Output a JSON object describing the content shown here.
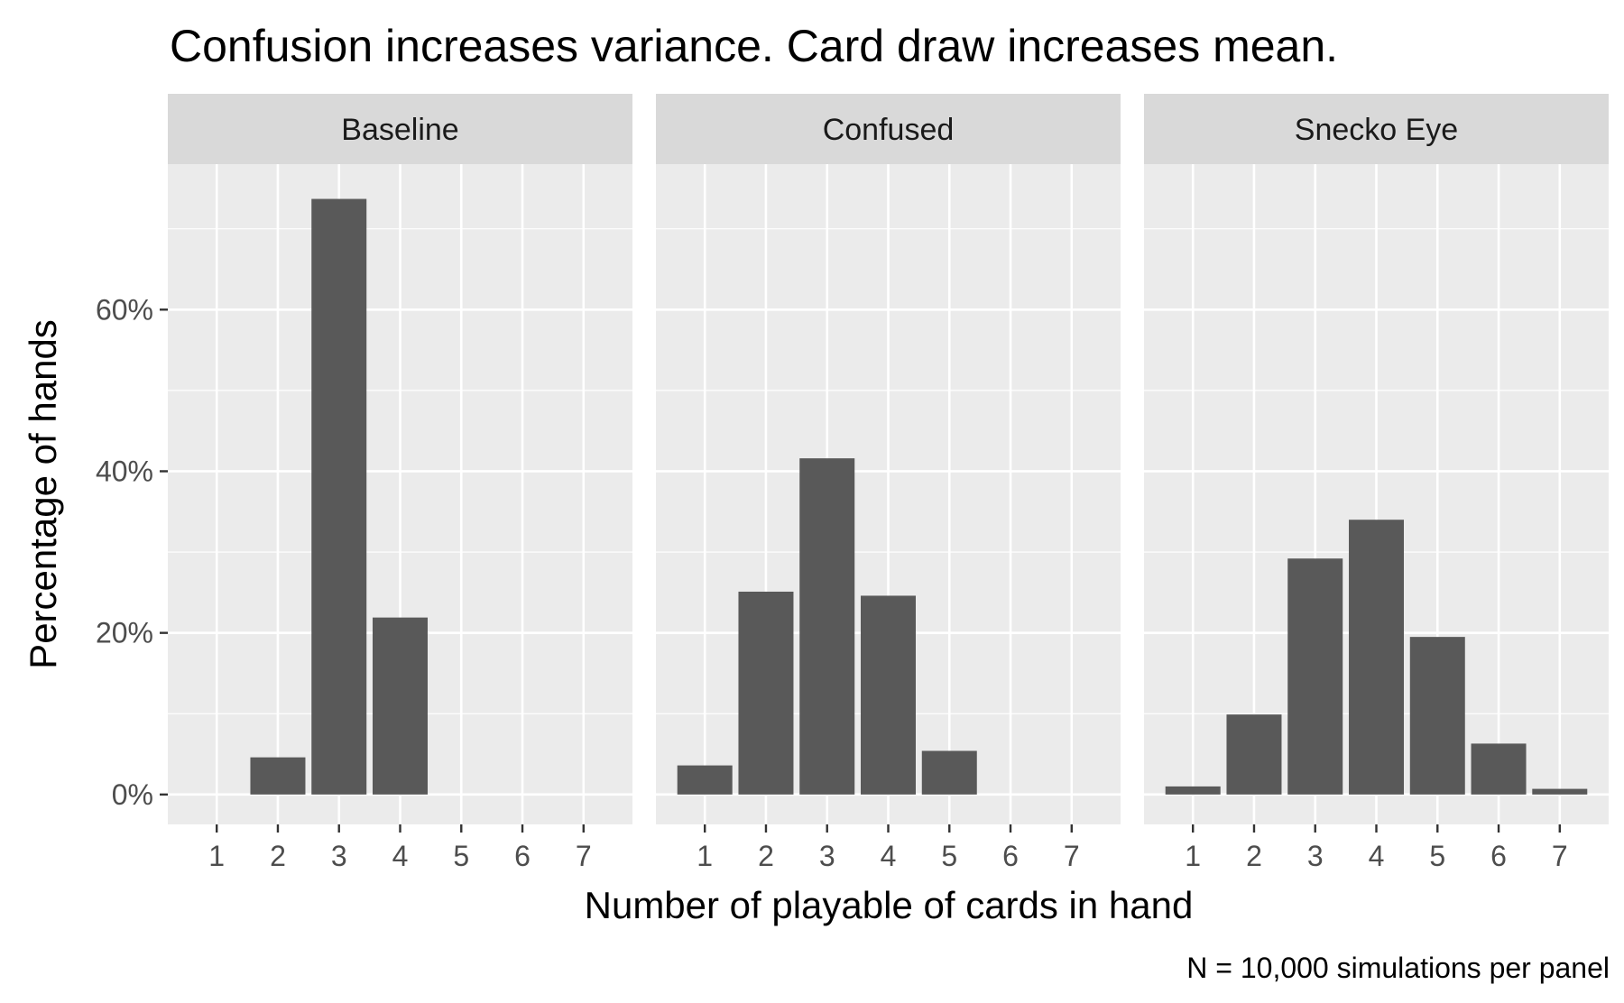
{
  "chart_data": {
    "type": "bar",
    "title": "Confusion increases variance. Card draw increases mean.",
    "xlabel": "Number of playable of cards in hand",
    "ylabel": "Percentage of hands",
    "caption": "N = 10,000 simulations per panel",
    "x_ticks": [
      1,
      2,
      3,
      4,
      5,
      6,
      7
    ],
    "xlim": [
      0.2,
      7.8
    ],
    "ylim": [
      -0.037,
      0.78
    ],
    "y_ticks": [
      0,
      0.2,
      0.4,
      0.6
    ],
    "y_tick_labels": [
      "0%",
      "20%",
      "40%",
      "60%"
    ],
    "y_minor_ticks": [
      0.1,
      0.3,
      0.5,
      0.7
    ],
    "grid": true,
    "legend": "none",
    "bar_color": "#595959",
    "panel_background": "#ebebeb",
    "strip_background": "#d9d9d9",
    "grid_color": "#ffffff",
    "panels": [
      {
        "name": "Baseline",
        "x": [
          2,
          3,
          4
        ],
        "values": [
          0.046,
          0.737,
          0.219
        ]
      },
      {
        "name": "Confused",
        "x": [
          1,
          2,
          3,
          4,
          5
        ],
        "values": [
          0.036,
          0.251,
          0.416,
          0.246,
          0.054
        ]
      },
      {
        "name": "Snecko Eye",
        "x": [
          1,
          2,
          3,
          4,
          5,
          6,
          7
        ],
        "values": [
          0.01,
          0.099,
          0.292,
          0.34,
          0.195,
          0.063,
          0.007
        ]
      }
    ]
  }
}
